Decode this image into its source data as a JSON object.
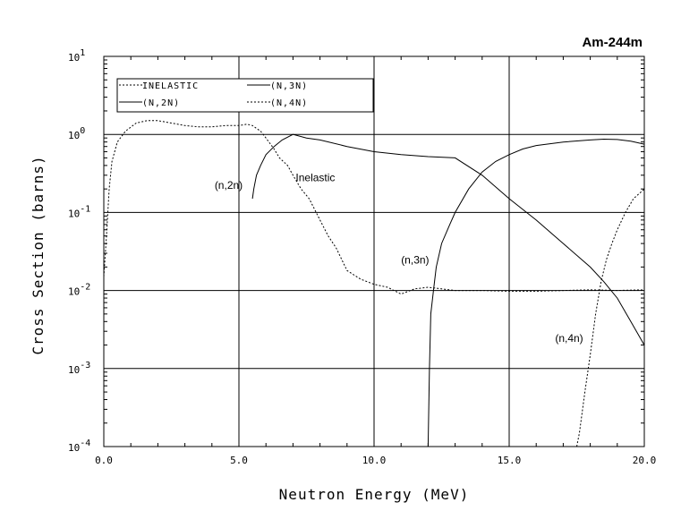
{
  "chart_data": {
    "type": "line",
    "title": "Am-244m",
    "xlabel": "Neutron Energy (MeV)",
    "ylabel": "Cross Section (barns)",
    "xlim": [
      0,
      20
    ],
    "ylim": [
      0.0001,
      10
    ],
    "yscale": "log",
    "grid": true,
    "legend_position": "top-left",
    "xticks": [
      "0.0",
      "5.0",
      "10.0",
      "15.0",
      "20.0"
    ],
    "xtick_values": [
      0,
      5,
      10,
      15,
      20
    ],
    "yticks": [
      {
        "base": "10",
        "exp": "-4",
        "value": 0.0001
      },
      {
        "base": "10",
        "exp": "-3",
        "value": 0.001
      },
      {
        "base": "10",
        "exp": "-2",
        "value": 0.01
      },
      {
        "base": "10",
        "exp": "-1",
        "value": 0.1
      },
      {
        "base": "10",
        "exp": "0",
        "value": 1
      },
      {
        "base": "10",
        "exp": "1",
        "value": 10
      }
    ],
    "series": [
      {
        "name": "INELASTIC",
        "style": "dashed",
        "x": [
          0.0,
          0.1,
          0.2,
          0.3,
          0.5,
          0.8,
          1.2,
          1.6,
          2.0,
          2.5,
          3.0,
          3.5,
          4.0,
          4.5,
          5.0,
          5.3,
          5.5,
          5.8,
          6.0,
          6.3,
          6.5,
          6.8,
          7.0,
          7.3,
          7.6,
          8.0,
          8.3,
          8.6,
          9.0,
          9.5,
          10.0,
          10.5,
          11.0,
          11.5,
          12.0,
          13.0,
          14.0,
          15.0,
          16.0,
          17.0,
          18.0,
          18.5,
          19.0,
          19.5,
          20.0
        ],
        "y": [
          0.015,
          0.05,
          0.2,
          0.45,
          0.8,
          1.1,
          1.4,
          1.5,
          1.5,
          1.4,
          1.3,
          1.25,
          1.25,
          1.3,
          1.3,
          1.35,
          1.3,
          1.1,
          0.9,
          0.65,
          0.5,
          0.4,
          0.3,
          0.2,
          0.15,
          0.08,
          0.05,
          0.035,
          0.018,
          0.014,
          0.012,
          0.011,
          0.009,
          0.0105,
          0.011,
          0.01,
          0.01,
          0.0098,
          0.0098,
          0.01,
          0.0102,
          0.0101,
          0.01,
          0.0101,
          0.0102
        ]
      },
      {
        "name": "(N,2N)",
        "style": "solid",
        "x": [
          5.5,
          5.55,
          5.65,
          5.8,
          6.0,
          6.3,
          6.6,
          7.0,
          7.5,
          8.0,
          9.0,
          10.0,
          11.0,
          12.0,
          13.0,
          14.0,
          15.0,
          16.0,
          17.0,
          18.0,
          18.5,
          19.0,
          19.5,
          20.0
        ],
        "y": [
          0.15,
          0.2,
          0.3,
          0.4,
          0.55,
          0.7,
          0.85,
          1.0,
          0.9,
          0.85,
          0.7,
          0.6,
          0.55,
          0.52,
          0.5,
          0.3,
          0.15,
          0.08,
          0.04,
          0.02,
          0.013,
          0.008,
          0.004,
          0.002
        ]
      },
      {
        "name": "(N,3N)",
        "style": "solid",
        "x": [
          12.0,
          12.05,
          12.1,
          12.2,
          12.3,
          12.5,
          12.8,
          13.0,
          13.5,
          14.0,
          14.5,
          15.0,
          15.5,
          16.0,
          17.0,
          18.0,
          18.5,
          19.0,
          19.5,
          20.0
        ],
        "y": [
          0.0001,
          0.001,
          0.005,
          0.01,
          0.02,
          0.04,
          0.07,
          0.1,
          0.2,
          0.33,
          0.45,
          0.55,
          0.65,
          0.72,
          0.8,
          0.85,
          0.87,
          0.86,
          0.82,
          0.75
        ]
      },
      {
        "name": "(N,4N)",
        "style": "dashed",
        "x": [
          17.5,
          17.6,
          17.8,
          18.0,
          18.2,
          18.4,
          18.6,
          18.8,
          19.0,
          19.3,
          19.6,
          20.0
        ],
        "y": [
          0.0001,
          0.00015,
          0.0005,
          0.0015,
          0.005,
          0.013,
          0.025,
          0.04,
          0.06,
          0.1,
          0.15,
          0.2
        ]
      }
    ],
    "annotations": [
      {
        "text": "Inelastic",
        "x": 7.1,
        "y": 0.25
      },
      {
        "text": "(n,2n)",
        "x": 4.1,
        "y": 0.2
      },
      {
        "text": "(n,3n)",
        "x": 11.0,
        "y": 0.022
      },
      {
        "text": "(n,4n)",
        "x": 16.7,
        "y": 0.0022
      }
    ]
  }
}
